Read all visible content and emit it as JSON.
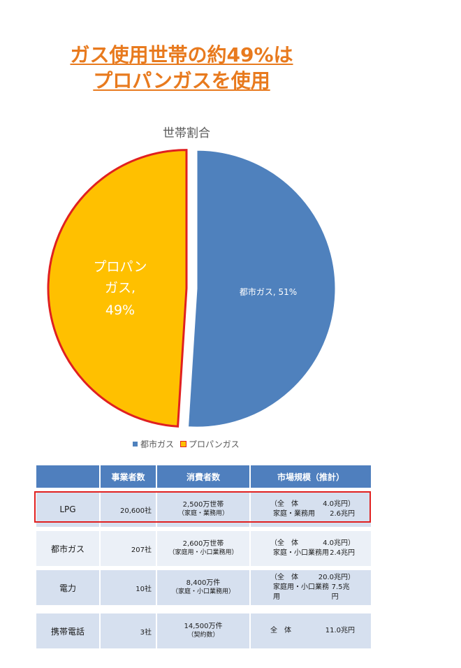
{
  "headline": {
    "line1": "ガス使用世帯の約49%は",
    "line2": "プロパンガスを使用",
    "color": "#e87a1e"
  },
  "chart_data": {
    "type": "pie",
    "title": "世帯割合",
    "slices": [
      {
        "name": "都市ガス",
        "value": 51,
        "label": "都市ガス, 51%",
        "color": "#4f81bd",
        "exploded": false
      },
      {
        "name": "プロパンガス",
        "value": 49,
        "label_lines": [
          "プロパン",
          "ガス,",
          "49%"
        ],
        "color": "#ffc000",
        "border": "#e02020",
        "exploded": true
      }
    ],
    "legend": [
      "都市ガス",
      "プロパンガス"
    ],
    "legend_position": "bottom"
  },
  "table": {
    "headers": [
      "",
      "事業者数",
      "消費者数",
      "市場規模（推計）"
    ],
    "rows": [
      {
        "name": "LPG",
        "count": "20,600社",
        "cons1": "2,500万世帯",
        "cons2": "（家庭・業務用）",
        "mk1a": "（全　体",
        "mk1b": "4.0兆円）",
        "mk2a": "家庭・業務用",
        "mk2b": "2.6兆円",
        "highlight": true
      },
      {
        "name": "都市ガス",
        "count": "207社",
        "cons1": "2,600万世帯",
        "cons2": "（家庭用・小口業務用）",
        "mk1a": "（全　体",
        "mk1b": "4.0兆円）",
        "mk2a": "家庭・小口業務用",
        "mk2b": "2.4兆円"
      },
      {
        "name": "電力",
        "count": "10社",
        "cons1": "8,400万件",
        "cons2": "（家庭・小口業務用）",
        "mk1a": "（全　体",
        "mk1b": "20.0兆円）",
        "mk2a": "家庭用・小口業務用",
        "mk2b": "7.5兆円"
      },
      {
        "name": "携帯電話",
        "count": "3社",
        "cons1": "14,500万件",
        "cons2": "（契約数）",
        "mk1a": "全　体",
        "mk1b": "11.0兆円"
      }
    ]
  }
}
